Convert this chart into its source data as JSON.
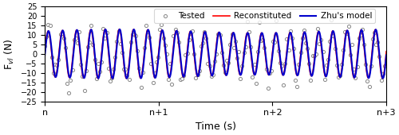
{
  "title": "",
  "xlabel": "Time (s)",
  "ylabel": "F_vl (N)",
  "ylim": [
    -25,
    25
  ],
  "xlim": [
    0,
    3
  ],
  "yticks": [
    -25,
    -20,
    -15,
    -10,
    -5,
    0,
    5,
    10,
    15,
    20,
    25
  ],
  "xtick_positions": [
    0,
    1,
    2,
    3
  ],
  "xtick_labels": [
    "n",
    "n+1",
    "n+2",
    "n+3"
  ],
  "legend_labels": [
    "Tested",
    "Reconstituted",
    "Zhu's model"
  ],
  "circle_color": "#888888",
  "red_color": "#ff0000",
  "blue_color": "#0000cc",
  "n_periods": 3,
  "cycles_per_period": 8,
  "amplitude_tested": 20,
  "amplitude_smooth": 12,
  "figsize": [
    5.0,
    1.7
  ],
  "dpi": 100
}
